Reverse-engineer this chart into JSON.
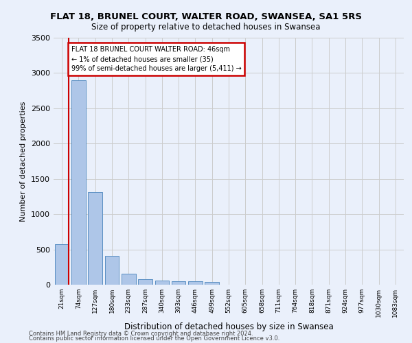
{
  "title": "FLAT 18, BRUNEL COURT, WALTER ROAD, SWANSEA, SA1 5RS",
  "subtitle": "Size of property relative to detached houses in Swansea",
  "xlabel": "Distribution of detached houses by size in Swansea",
  "ylabel": "Number of detached properties",
  "categories": [
    "21sqm",
    "74sqm",
    "127sqm",
    "180sqm",
    "233sqm",
    "287sqm",
    "340sqm",
    "393sqm",
    "446sqm",
    "499sqm",
    "552sqm",
    "605sqm",
    "658sqm",
    "711sqm",
    "764sqm",
    "818sqm",
    "871sqm",
    "924sqm",
    "977sqm",
    "1030sqm",
    "1083sqm"
  ],
  "bar_heights": [
    570,
    2900,
    1310,
    410,
    155,
    80,
    60,
    50,
    45,
    35,
    0,
    0,
    0,
    0,
    0,
    0,
    0,
    0,
    0,
    0,
    0
  ],
  "bar_color": "#aec6e8",
  "bar_edge_color": "#5a8fc3",
  "annotation_text": "FLAT 18 BRUNEL COURT WALTER ROAD: 46sqm\n← 1% of detached houses are smaller (35)\n99% of semi-detached houses are larger (5,411) →",
  "annotation_box_color": "#ffffff",
  "annotation_box_edge_color": "#cc0000",
  "vline_color": "#cc0000",
  "grid_color": "#cccccc",
  "background_color": "#eaf0fb",
  "footer_line1": "Contains HM Land Registry data © Crown copyright and database right 2024.",
  "footer_line2": "Contains public sector information licensed under the Open Government Licence v3.0.",
  "ylim": [
    0,
    3500
  ],
  "yticks": [
    0,
    500,
    1000,
    1500,
    2000,
    2500,
    3000,
    3500
  ]
}
